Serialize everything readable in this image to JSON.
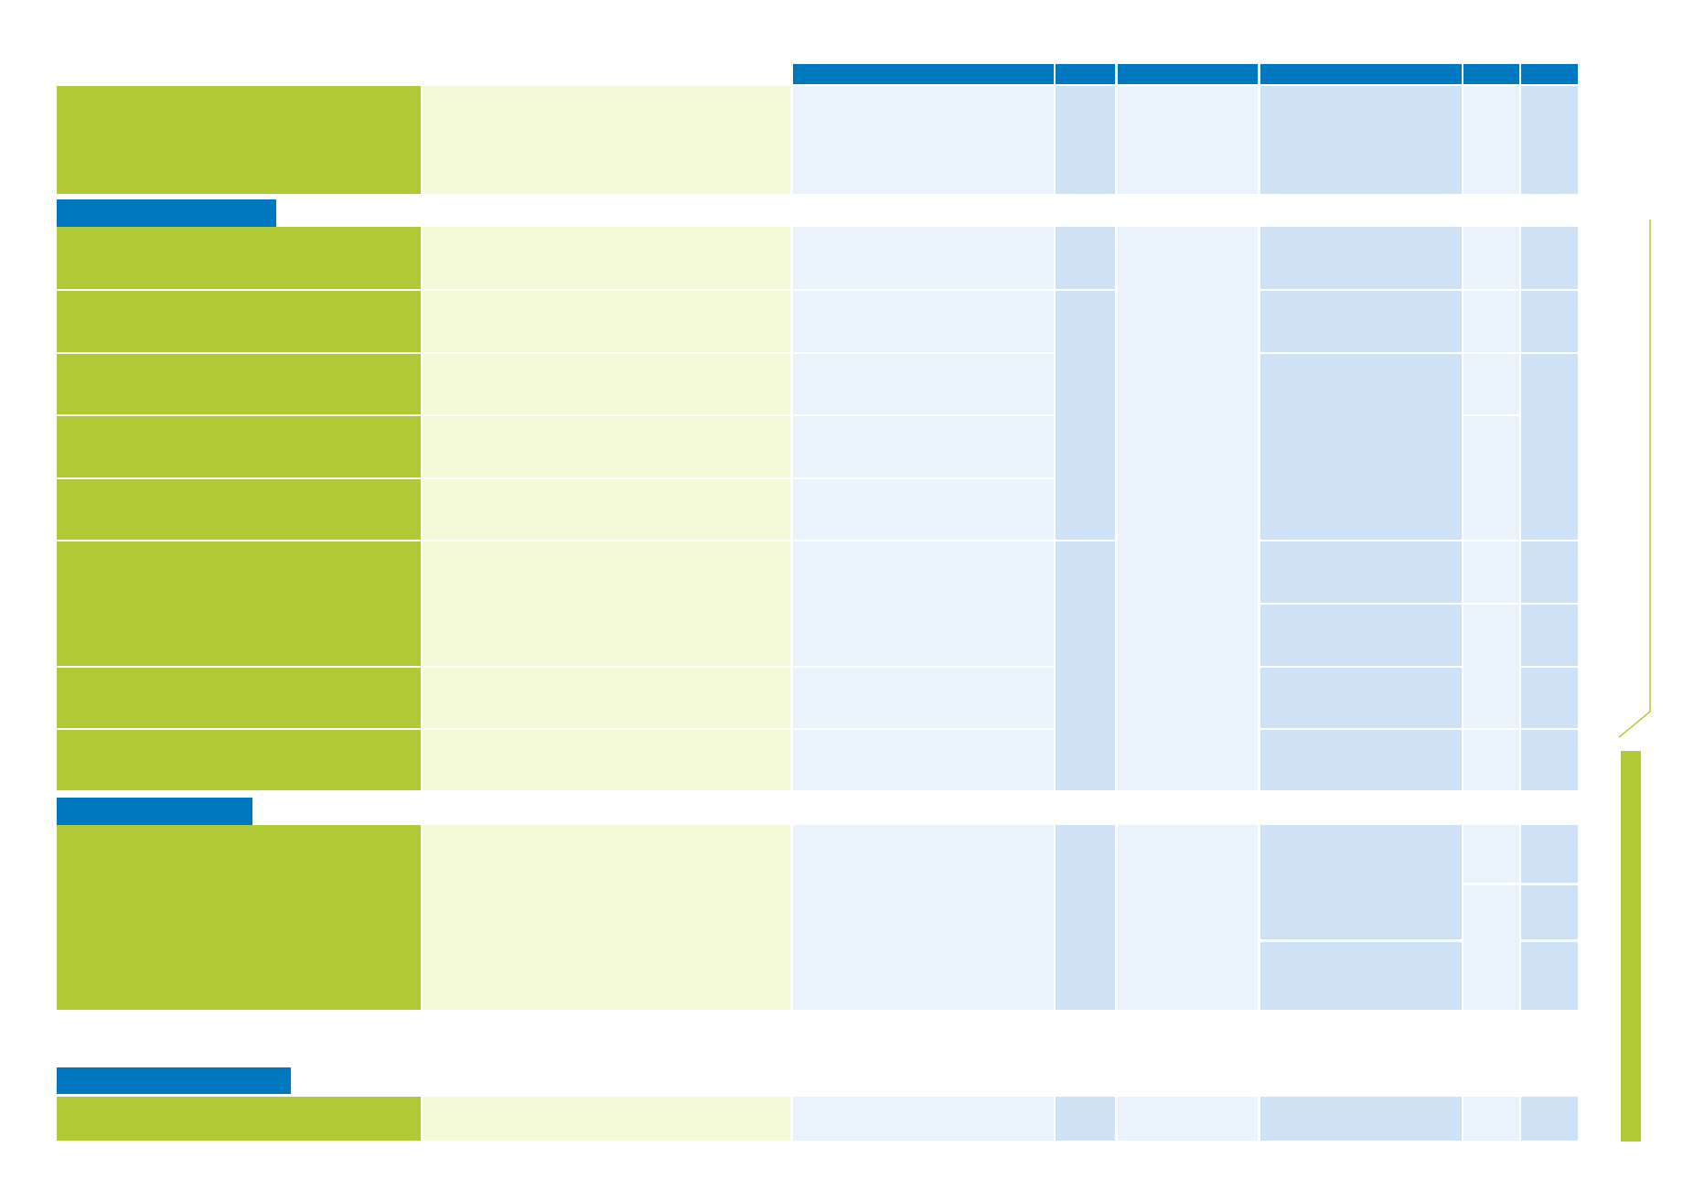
{
  "colors": {
    "green_strong": "#b2c936",
    "green_pale": "#f4f9d8",
    "blue_pale": "#eaf3fb",
    "blue_mid": "#cfe1f4",
    "blue_header": "#0078c0",
    "background": "#ffffff"
  },
  "table": {
    "column_headers": [
      "",
      "",
      "",
      "",
      "",
      ""
    ],
    "sections": [
      {
        "label": ""
      },
      {
        "label": ""
      },
      {
        "label": ""
      }
    ]
  }
}
